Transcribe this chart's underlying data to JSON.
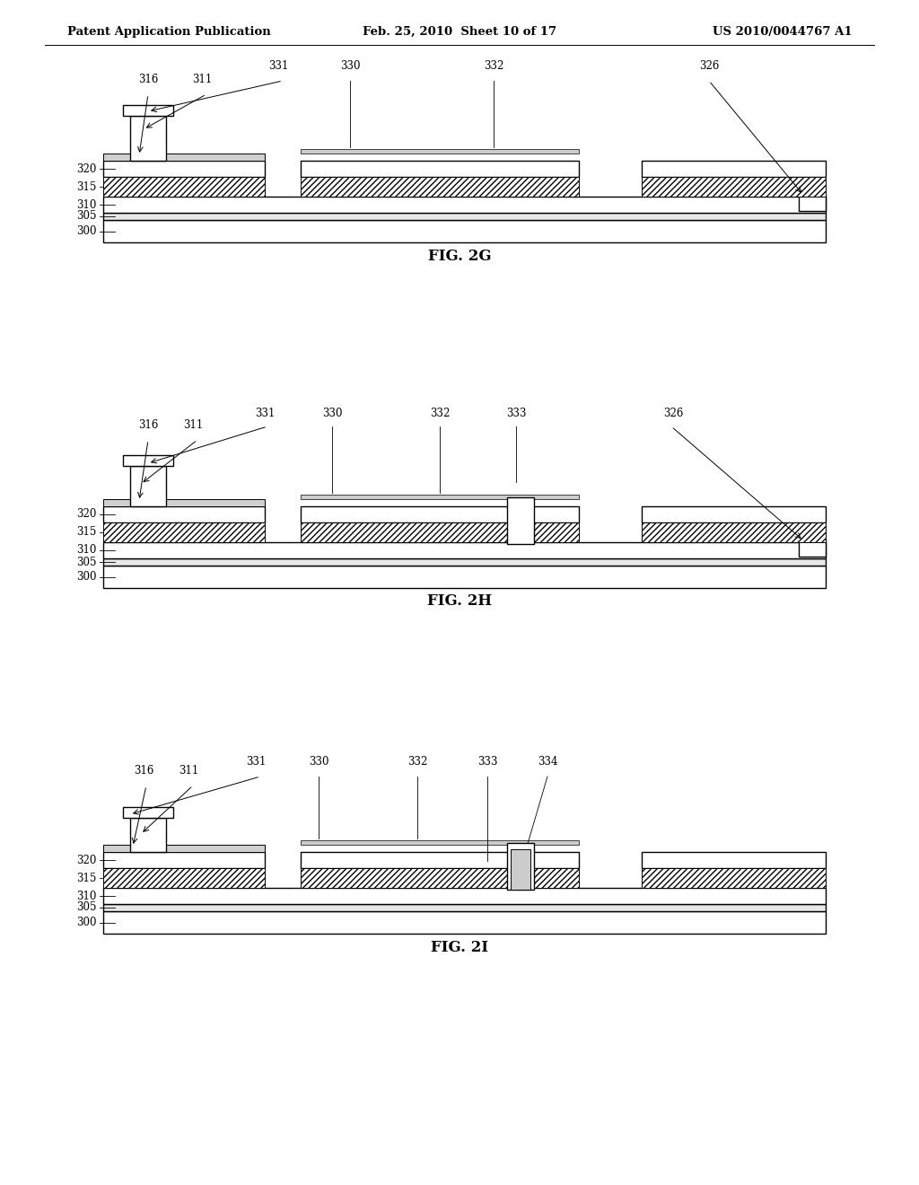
{
  "header_left": "Patent Application Publication",
  "header_mid": "Feb. 25, 2010  Sheet 10 of 17",
  "header_right": "US 2010/0044767 A1",
  "fig_labels": [
    "FIG. 2G",
    "FIG. 2H",
    "FIG. 2I"
  ],
  "bg_color": "#ffffff",
  "line_color": "#000000",
  "hatch_color": "#555555",
  "layer_labels": {
    "300": "300",
    "305": "305",
    "310": "310",
    "315": "315",
    "320": "320"
  },
  "fig2g_labels": [
    "316",
    "311",
    "331",
    "330",
    "332",
    "326"
  ],
  "fig2h_labels": [
    "316",
    "311",
    "331",
    "330",
    "332",
    "333",
    "326"
  ],
  "fig2i_labels": [
    "316",
    "311",
    "331",
    "330",
    "332",
    "333",
    "334"
  ]
}
